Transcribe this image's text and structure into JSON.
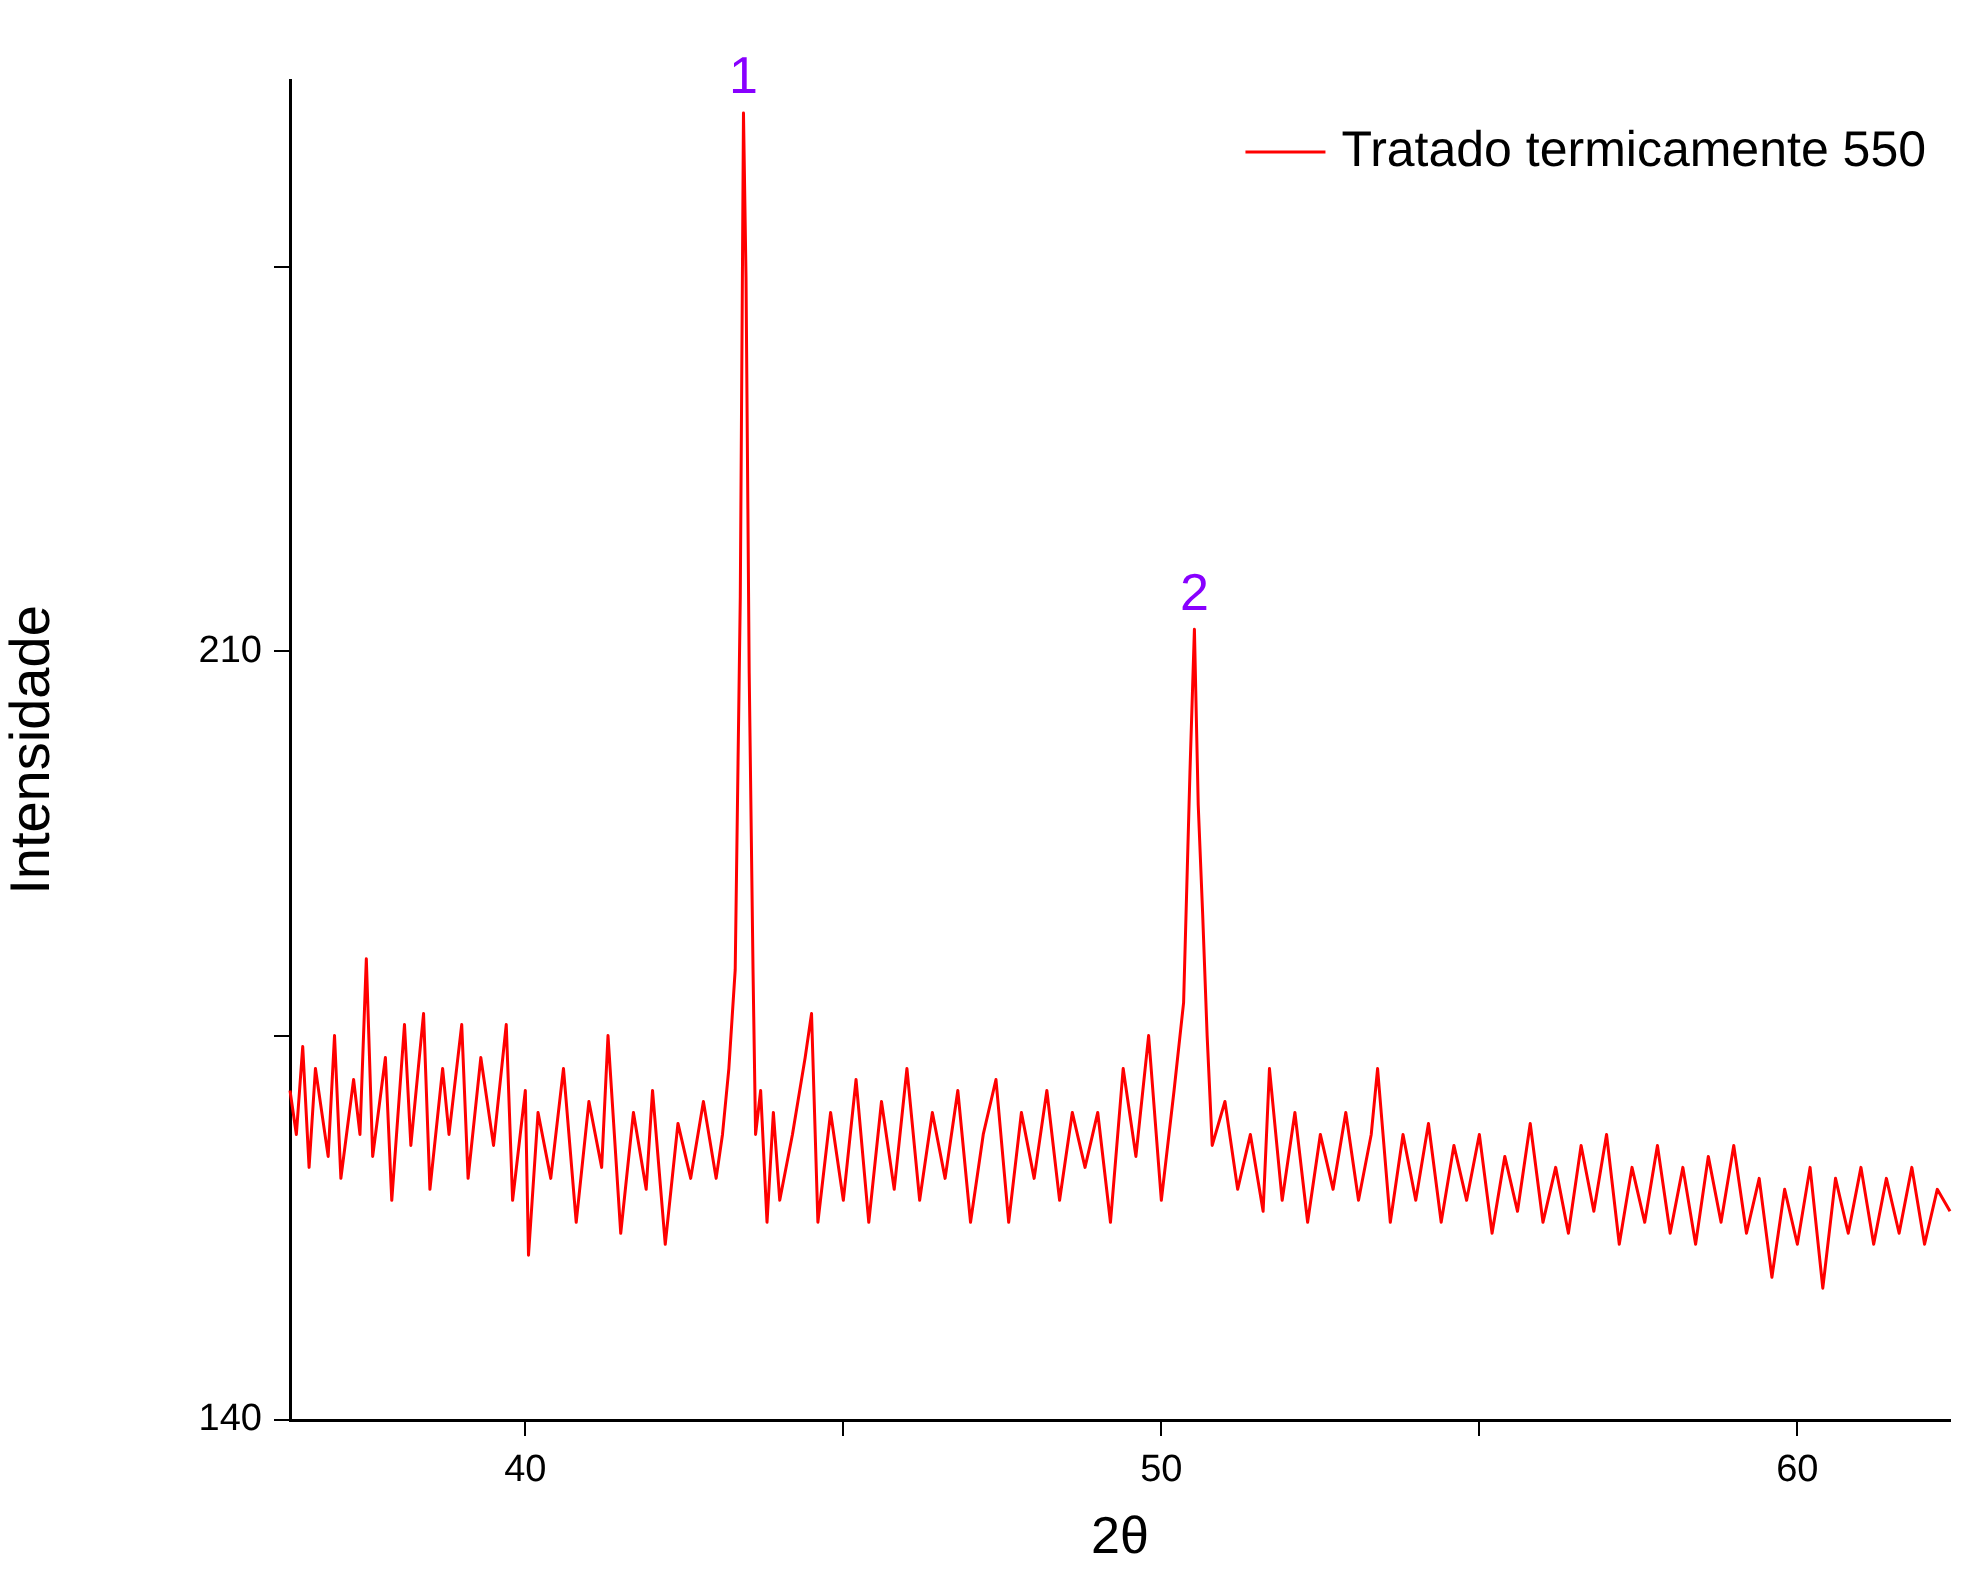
{
  "chart_data": {
    "type": "line",
    "xlabel": "2θ",
    "ylabel": "Intensidade",
    "legend": "top right",
    "grid": false,
    "marker": "none",
    "xlim": [
      36.3,
      62.4
    ],
    "xticks": [
      40,
      {
        "value": 45,
        "label": null
      },
      50,
      {
        "value": 55,
        "label": null
      },
      60
    ],
    "ylim": [
      140,
      262
    ],
    "yticks": [
      140,
      {
        "value": 175,
        "label": null
      },
      210,
      {
        "value": 245,
        "label": null
      }
    ],
    "annotations": [
      {
        "text": "1",
        "x": 43.43,
        "y": 259
      },
      {
        "text": "2",
        "x": 50.52,
        "y": 212
      }
    ],
    "series": [
      {
        "name": "Tratado termicamente 550",
        "color": "#ff0000",
        "x": [
          36.3,
          36.4,
          36.5,
          36.6,
          36.7,
          36.9,
          37.0,
          37.1,
          37.3,
          37.4,
          37.5,
          37.6,
          37.8,
          37.9,
          38.1,
          38.2,
          38.4,
          38.5,
          38.7,
          38.8,
          39.0,
          39.1,
          39.3,
          39.5,
          39.7,
          39.8,
          40.0,
          40.05,
          40.2,
          40.4,
          40.6,
          40.8,
          41.0,
          41.2,
          41.3,
          41.5,
          41.7,
          41.9,
          42.0,
          42.2,
          42.4,
          42.6,
          42.8,
          43.0,
          43.1,
          43.2,
          43.3,
          43.38,
          43.43,
          43.47,
          43.52,
          43.58,
          43.62,
          43.7,
          43.8,
          43.9,
          44.0,
          44.2,
          44.4,
          44.5,
          44.6,
          44.8,
          45.0,
          45.2,
          45.4,
          45.6,
          45.8,
          46.0,
          46.2,
          46.4,
          46.6,
          46.8,
          47.0,
          47.2,
          47.4,
          47.6,
          47.8,
          48.0,
          48.2,
          48.4,
          48.6,
          48.8,
          49.0,
          49.2,
          49.4,
          49.6,
          49.8,
          50.0,
          50.2,
          50.35,
          50.45,
          50.52,
          50.58,
          50.65,
          50.72,
          50.8,
          51.0,
          51.2,
          51.4,
          51.6,
          51.7,
          51.9,
          52.1,
          52.3,
          52.5,
          52.7,
          52.9,
          53.1,
          53.3,
          53.4,
          53.6,
          53.8,
          54.0,
          54.2,
          54.4,
          54.6,
          54.8,
          55.0,
          55.2,
          55.4,
          55.6,
          55.8,
          56.0,
          56.2,
          56.4,
          56.6,
          56.8,
          57.0,
          57.2,
          57.4,
          57.6,
          57.8,
          58.0,
          58.2,
          58.4,
          58.6,
          58.8,
          59.0,
          59.2,
          59.4,
          59.6,
          59.8,
          60.0,
          60.2,
          60.4,
          60.6,
          60.8,
          61.0,
          61.2,
          61.4,
          61.6,
          61.8,
          62.0,
          62.2,
          62.4
        ],
        "values": [
          170,
          166,
          174,
          163,
          172,
          164,
          175,
          162,
          171,
          166,
          182,
          164,
          173,
          160,
          176,
          165,
          177,
          161,
          172,
          166,
          176,
          162,
          173,
          165,
          176,
          160,
          170,
          155,
          168,
          162,
          172,
          158,
          169,
          163,
          175,
          157,
          168,
          161,
          170,
          156,
          167,
          162,
          169,
          162,
          166,
          172,
          181,
          215,
          259,
          244,
          208,
          181,
          166,
          170,
          158,
          168,
          160,
          166,
          173,
          177,
          158,
          168,
          160,
          171,
          158,
          169,
          161,
          172,
          160,
          168,
          162,
          170,
          158,
          166,
          171,
          158,
          168,
          162,
          170,
          160,
          168,
          163,
          168,
          158,
          172,
          164,
          175,
          160,
          170,
          178,
          199,
          212,
          196,
          186,
          175,
          165,
          169,
          161,
          166,
          159,
          172,
          160,
          168,
          158,
          166,
          161,
          168,
          160,
          166,
          172,
          158,
          166,
          160,
          167,
          158,
          165,
          160,
          166,
          157,
          164,
          159,
          167,
          158,
          163,
          157,
          165,
          159,
          166,
          156,
          163,
          158,
          165,
          157,
          163,
          156,
          164,
          158,
          165,
          157,
          162,
          153,
          161,
          156,
          163,
          152,
          162,
          157,
          163,
          156,
          162,
          157,
          163,
          156,
          161,
          159
        ]
      }
    ]
  }
}
